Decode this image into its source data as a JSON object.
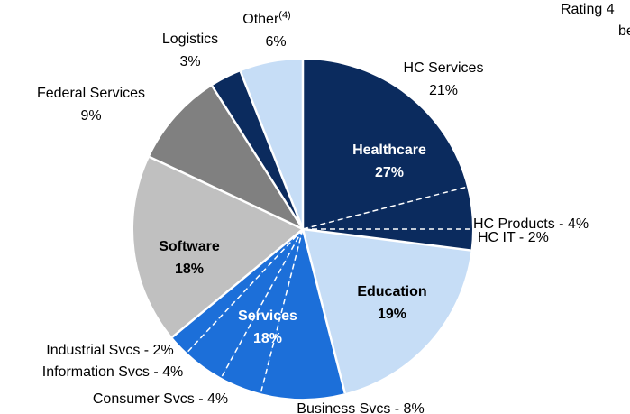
{
  "chart_data": {
    "type": "pie",
    "slices": [
      {
        "name": "HC Services",
        "value": 21,
        "value_label": "21%",
        "color": "#0b2b5e",
        "group": 0
      },
      {
        "label": "HC Products - 4%",
        "value": 4,
        "color": "#0b2b5e",
        "group": 0
      },
      {
        "label": "HC IT - 2%",
        "value": 2,
        "color": "#0b2b5e",
        "group": 0
      },
      {
        "name": "Education",
        "value": 19,
        "value_label": "19%",
        "color": "#c6ddf6"
      },
      {
        "label": "Business Svcs - 8%",
        "value": 8,
        "color": "#1c6fd9",
        "group": 1
      },
      {
        "label": "Consumer Svcs - 4%",
        "value": 4,
        "color": "#1c6fd9",
        "group": 1
      },
      {
        "label": "Information Svcs - 4%",
        "value": 4,
        "color": "#1c6fd9",
        "group": 1
      },
      {
        "label": "Industrial Svcs - 2%",
        "value": 2,
        "color": "#1c6fd9",
        "group": 1
      },
      {
        "name": "Software",
        "value": 18,
        "value_label": "18%",
        "color": "#c0c0c0"
      },
      {
        "name": "Federal Services",
        "value": 9,
        "value_label": "9%",
        "color": "#808080"
      },
      {
        "name": "Logistics",
        "value": 3,
        "value_label": "3%",
        "color": "#0b2b5e"
      },
      {
        "name": "Other",
        "note": "(4)",
        "value": 6,
        "value_label": "6%",
        "color": "#c6ddf6"
      }
    ],
    "groups": [
      {
        "name": "Healthcare",
        "value": 27,
        "value_label": "27%"
      },
      {
        "name": "Services",
        "value": 18,
        "value_label": "18%"
      }
    ],
    "annotations": [
      "Rating 4",
      "be"
    ]
  }
}
